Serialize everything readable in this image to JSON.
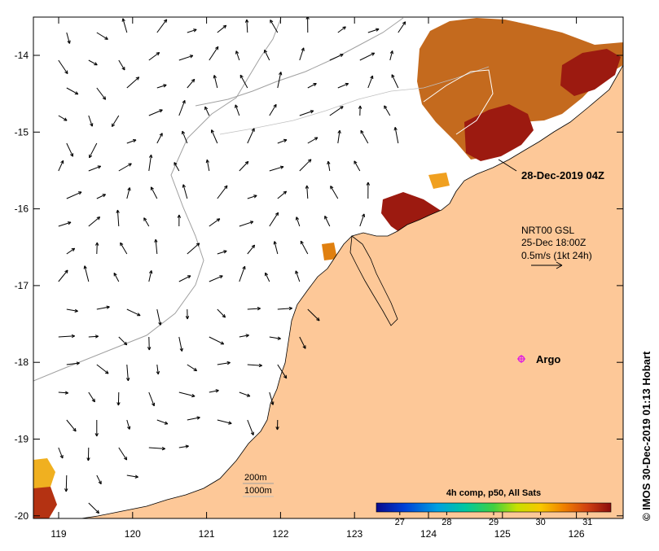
{
  "map": {
    "lon_ticks": [
      "119",
      "120",
      "121",
      "122",
      "123",
      "124",
      "125",
      "126"
    ],
    "lat_ticks": [
      "-14",
      "-15",
      "-16",
      "-17",
      "-18",
      "-19",
      "-20"
    ],
    "swath_time": "28-Dec-2019 04Z",
    "current_source": {
      "product": "NRT00 GSL",
      "time": "25-Dec 18:00Z",
      "scale": "0.5m/s (1kt 24h)"
    },
    "argo_label": "Argo",
    "contours": {
      "shallow": "200m",
      "deep": "1000m"
    },
    "colorbar": {
      "title": "4h comp, p50, All Sats",
      "ticks": [
        "27",
        "28",
        "29",
        "30",
        "31"
      ],
      "range": [
        26.5,
        31.5
      ]
    },
    "credit": "© IMOS 30-Dec-2019 01:13 Hobart",
    "colors": {
      "land": "#fdc898",
      "sst_warm": "#c46a1e",
      "sst_hot": "#9c1a10",
      "argo": "#e020e0"
    }
  }
}
